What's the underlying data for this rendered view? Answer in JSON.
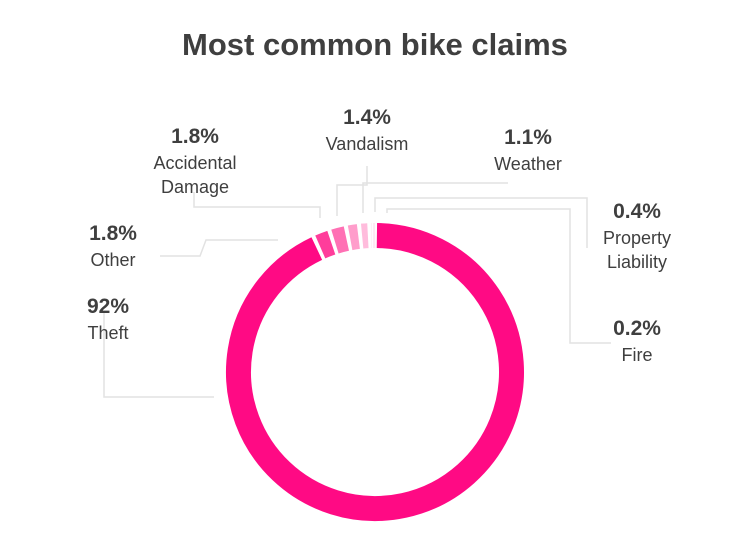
{
  "chart_data": {
    "type": "pie",
    "title": "Most common bike claims",
    "categories": [
      "Theft",
      "Other",
      "Accidental Damage",
      "Vandalism",
      "Weather",
      "Property Liability",
      "Fire"
    ],
    "values": [
      92,
      1.8,
      1.8,
      1.4,
      1.1,
      0.4,
      0.2
    ],
    "value_labels": [
      "92%",
      "1.8%",
      "1.8%",
      "1.4%",
      "1.1%",
      "0.4%",
      "0.2%"
    ],
    "label_lines": [
      [
        "Theft"
      ],
      [
        "Other"
      ],
      [
        "Accidental",
        "Damage"
      ],
      [
        "Vandalism"
      ],
      [
        "Weather"
      ],
      [
        "Property",
        "Liability"
      ],
      [
        "Fire"
      ]
    ],
    "colors": [
      "#ff0a84",
      "#ff3d9b",
      "#ff70b4",
      "#ff9dcb",
      "#ffbcdc",
      "#ffd6ea",
      "#ffe9f3"
    ],
    "donut": true,
    "legend": "none"
  }
}
